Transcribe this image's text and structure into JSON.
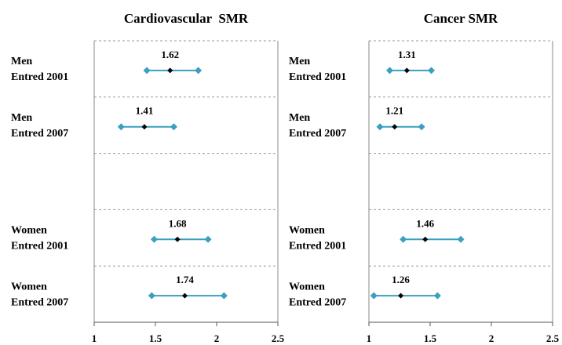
{
  "chart_data": [
    {
      "type": "forest",
      "title": "Cardiovascular  SMR",
      "categories": [
        [
          "Men",
          "Entred 2001"
        ],
        [
          "Men",
          "Entred 2007"
        ],
        null,
        [
          "Women",
          "Entred 2001"
        ],
        [
          "Women",
          "Entred 2007"
        ]
      ],
      "values": [
        1.62,
        1.41,
        null,
        1.68,
        1.74
      ],
      "lower": [
        1.43,
        1.22,
        null,
        1.49,
        1.47
      ],
      "upper": [
        1.85,
        1.65,
        null,
        1.93,
        2.06
      ],
      "color": "#3a9fc0",
      "point_color": "#000000",
      "xlim": [
        1,
        2.5
      ],
      "xticks": [
        1,
        1.5,
        2,
        2.5
      ]
    },
    {
      "type": "forest",
      "title": "Cancer SMR",
      "categories": [
        [
          "Men",
          "Entred 2001"
        ],
        [
          "Men",
          "Entred 2007"
        ],
        null,
        [
          "Women",
          "Entred 2001"
        ],
        [
          "Women",
          "Entred 2007"
        ]
      ],
      "values": [
        1.31,
        1.21,
        null,
        1.46,
        1.26
      ],
      "lower": [
        1.17,
        1.09,
        null,
        1.28,
        1.04
      ],
      "upper": [
        1.51,
        1.43,
        null,
        1.75,
        1.56
      ],
      "color": "#3a9fc0",
      "point_color": "#000000",
      "xlim": [
        1,
        2.5
      ],
      "xticks": [
        1,
        1.5,
        2,
        2.5
      ]
    }
  ]
}
